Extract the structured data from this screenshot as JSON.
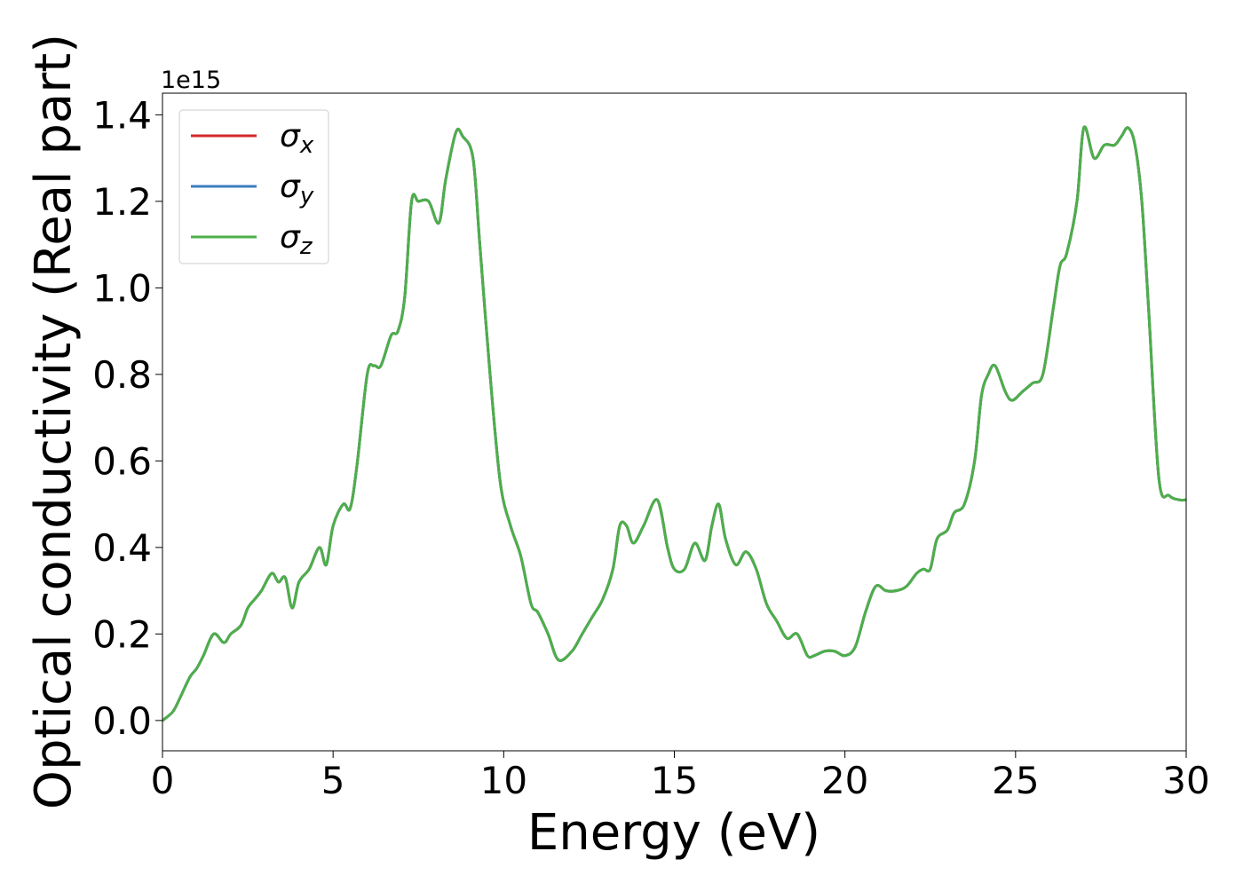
{
  "chart_data": {
    "type": "line",
    "xlabel": "Energy (eV)",
    "ylabel": "Optical conductivity (Real part)",
    "y_offset_text": "1e15",
    "xlim": [
      0,
      30
    ],
    "ylim": [
      -0.07,
      1.45
    ],
    "x_ticks": [
      0,
      5,
      10,
      15,
      20,
      25,
      30
    ],
    "x_tick_labels": [
      "0",
      "5",
      "10",
      "15",
      "20",
      "25",
      "30"
    ],
    "y_ticks": [
      0.0,
      0.2,
      0.4,
      0.6,
      0.8,
      1.0,
      1.2,
      1.4
    ],
    "y_tick_labels": [
      "0.0",
      "0.2",
      "0.4",
      "0.6",
      "0.8",
      "1.0",
      "1.2",
      "1.4"
    ],
    "grid": false,
    "legend_position": "top-left",
    "x": [
      0,
      0.3,
      0.5,
      0.8,
      1.0,
      1.2,
      1.5,
      1.8,
      2.0,
      2.3,
      2.5,
      2.7,
      2.9,
      3.2,
      3.4,
      3.6,
      3.8,
      4.0,
      4.3,
      4.6,
      4.8,
      5.0,
      5.3,
      5.5,
      5.7,
      6.0,
      6.2,
      6.4,
      6.7,
      6.9,
      7.1,
      7.3,
      7.5,
      7.8,
      8.1,
      8.3,
      8.6,
      8.8,
      9.1,
      9.3,
      9.6,
      9.9,
      10.2,
      10.5,
      10.8,
      11.0,
      11.3,
      11.6,
      12.0,
      12.3,
      12.6,
      12.9,
      13.2,
      13.4,
      13.6,
      13.8,
      14.1,
      14.5,
      14.8,
      15.0,
      15.3,
      15.6,
      15.9,
      16.1,
      16.3,
      16.5,
      16.8,
      17.1,
      17.4,
      17.7,
      18.0,
      18.3,
      18.6,
      18.9,
      19.1,
      19.4,
      19.7,
      20.0,
      20.3,
      20.6,
      20.9,
      21.2,
      21.5,
      21.8,
      22.1,
      22.3,
      22.5,
      22.7,
      23.0,
      23.2,
      23.5,
      23.8,
      24.0,
      24.2,
      24.4,
      24.7,
      24.9,
      25.2,
      25.5,
      25.8,
      26.1,
      26.3,
      26.5,
      26.8,
      27.0,
      27.3,
      27.6,
      27.9,
      28.1,
      28.3,
      28.5,
      28.7,
      28.9,
      29.2,
      29.5,
      29.8,
      30.0
    ],
    "series": [
      {
        "name": "σx",
        "legend_sub": "x",
        "color": "#d62728",
        "values": [
          0.0,
          0.02,
          0.05,
          0.1,
          0.12,
          0.15,
          0.2,
          0.18,
          0.2,
          0.22,
          0.26,
          0.28,
          0.3,
          0.34,
          0.32,
          0.33,
          0.26,
          0.32,
          0.35,
          0.4,
          0.36,
          0.45,
          0.5,
          0.49,
          0.59,
          0.8,
          0.82,
          0.82,
          0.89,
          0.9,
          0.98,
          1.2,
          1.2,
          1.2,
          1.15,
          1.25,
          1.36,
          1.35,
          1.3,
          1.1,
          0.8,
          0.55,
          0.45,
          0.38,
          0.27,
          0.25,
          0.2,
          0.14,
          0.16,
          0.2,
          0.24,
          0.28,
          0.35,
          0.45,
          0.45,
          0.41,
          0.45,
          0.51,
          0.4,
          0.35,
          0.35,
          0.41,
          0.37,
          0.45,
          0.5,
          0.42,
          0.36,
          0.39,
          0.35,
          0.27,
          0.23,
          0.19,
          0.2,
          0.15,
          0.15,
          0.16,
          0.16,
          0.15,
          0.17,
          0.25,
          0.31,
          0.3,
          0.3,
          0.31,
          0.34,
          0.35,
          0.35,
          0.42,
          0.44,
          0.48,
          0.5,
          0.6,
          0.75,
          0.8,
          0.82,
          0.76,
          0.74,
          0.76,
          0.78,
          0.8,
          0.95,
          1.05,
          1.08,
          1.2,
          1.37,
          1.3,
          1.33,
          1.33,
          1.35,
          1.37,
          1.33,
          1.2,
          0.95,
          0.56,
          0.52,
          0.51,
          0.51
        ]
      },
      {
        "name": "σy",
        "legend_sub": "y",
        "color": "#3b7dbf",
        "values": [
          0.0,
          0.02,
          0.05,
          0.1,
          0.12,
          0.15,
          0.2,
          0.18,
          0.2,
          0.22,
          0.26,
          0.28,
          0.3,
          0.34,
          0.32,
          0.33,
          0.26,
          0.32,
          0.35,
          0.4,
          0.36,
          0.45,
          0.5,
          0.49,
          0.59,
          0.8,
          0.82,
          0.82,
          0.89,
          0.9,
          0.98,
          1.2,
          1.2,
          1.2,
          1.15,
          1.25,
          1.36,
          1.35,
          1.3,
          1.1,
          0.8,
          0.55,
          0.45,
          0.38,
          0.27,
          0.25,
          0.2,
          0.14,
          0.16,
          0.2,
          0.24,
          0.28,
          0.35,
          0.45,
          0.45,
          0.41,
          0.45,
          0.51,
          0.4,
          0.35,
          0.35,
          0.41,
          0.37,
          0.45,
          0.5,
          0.42,
          0.36,
          0.39,
          0.35,
          0.27,
          0.23,
          0.19,
          0.2,
          0.15,
          0.15,
          0.16,
          0.16,
          0.15,
          0.17,
          0.25,
          0.31,
          0.3,
          0.3,
          0.31,
          0.34,
          0.35,
          0.35,
          0.42,
          0.44,
          0.48,
          0.5,
          0.6,
          0.75,
          0.8,
          0.82,
          0.76,
          0.74,
          0.76,
          0.78,
          0.8,
          0.95,
          1.05,
          1.08,
          1.2,
          1.37,
          1.3,
          1.33,
          1.33,
          1.35,
          1.37,
          1.33,
          1.2,
          0.95,
          0.56,
          0.52,
          0.51,
          0.51
        ]
      },
      {
        "name": "σz",
        "legend_sub": "z",
        "color": "#4daf4a",
        "values": [
          0.0,
          0.02,
          0.05,
          0.1,
          0.12,
          0.15,
          0.2,
          0.18,
          0.2,
          0.22,
          0.26,
          0.28,
          0.3,
          0.34,
          0.32,
          0.33,
          0.26,
          0.32,
          0.35,
          0.4,
          0.36,
          0.45,
          0.5,
          0.49,
          0.59,
          0.8,
          0.82,
          0.82,
          0.89,
          0.9,
          0.98,
          1.2,
          1.2,
          1.2,
          1.15,
          1.25,
          1.36,
          1.35,
          1.3,
          1.1,
          0.8,
          0.55,
          0.45,
          0.38,
          0.27,
          0.25,
          0.2,
          0.14,
          0.16,
          0.2,
          0.24,
          0.28,
          0.35,
          0.45,
          0.45,
          0.41,
          0.45,
          0.51,
          0.4,
          0.35,
          0.35,
          0.41,
          0.37,
          0.45,
          0.5,
          0.42,
          0.36,
          0.39,
          0.35,
          0.27,
          0.23,
          0.19,
          0.2,
          0.15,
          0.15,
          0.16,
          0.16,
          0.15,
          0.17,
          0.25,
          0.31,
          0.3,
          0.3,
          0.31,
          0.34,
          0.35,
          0.35,
          0.42,
          0.44,
          0.48,
          0.5,
          0.6,
          0.75,
          0.8,
          0.82,
          0.76,
          0.74,
          0.76,
          0.78,
          0.8,
          0.95,
          1.05,
          1.08,
          1.2,
          1.37,
          1.3,
          1.33,
          1.33,
          1.35,
          1.37,
          1.33,
          1.2,
          0.95,
          0.56,
          0.52,
          0.51,
          0.51
        ]
      }
    ]
  }
}
